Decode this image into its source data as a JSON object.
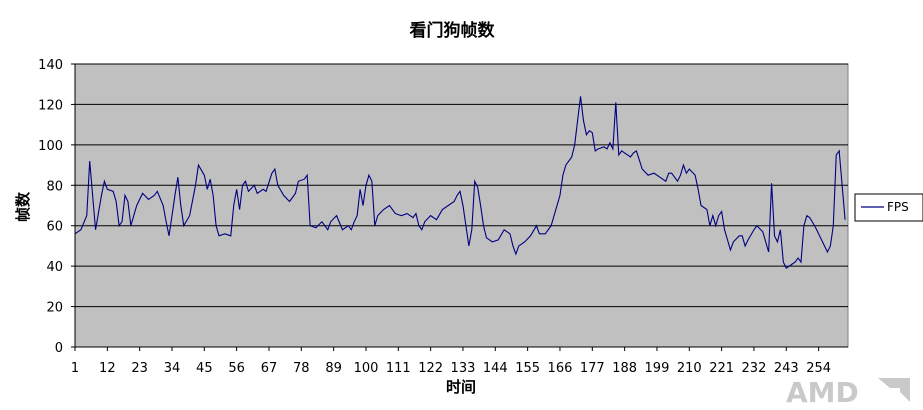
{
  "chart_data": {
    "type": "line",
    "title": "看门狗帧数",
    "xlabel": "时间",
    "ylabel": "帧数",
    "ylim": [
      0,
      140
    ],
    "yticks": [
      0,
      20,
      40,
      60,
      80,
      100,
      120,
      140
    ],
    "xticks": [
      1,
      12,
      23,
      34,
      45,
      56,
      67,
      78,
      89,
      100,
      111,
      122,
      133,
      144,
      155,
      166,
      177,
      188,
      199,
      210,
      221,
      232,
      243,
      254
    ],
    "xlim": [
      1,
      264
    ],
    "grid": "horizontal",
    "legend": "right",
    "background_color": "#c0c0c0",
    "line_color": "#000080",
    "series": [
      {
        "name": "FPS",
        "keypoints": [
          [
            1,
            56
          ],
          [
            3,
            58
          ],
          [
            5,
            65
          ],
          [
            6,
            92
          ],
          [
            8,
            58
          ],
          [
            10,
            75
          ],
          [
            11,
            82
          ],
          [
            12,
            78
          ],
          [
            14,
            77
          ],
          [
            15,
            72
          ],
          [
            16,
            60
          ],
          [
            17,
            62
          ],
          [
            18,
            75
          ],
          [
            19,
            72
          ],
          [
            20,
            60
          ],
          [
            22,
            70
          ],
          [
            24,
            76
          ],
          [
            26,
            73
          ],
          [
            28,
            75
          ],
          [
            29,
            77
          ],
          [
            31,
            70
          ],
          [
            32,
            62
          ],
          [
            33,
            55
          ],
          [
            35,
            75
          ],
          [
            36,
            84
          ],
          [
            37,
            70
          ],
          [
            38,
            60
          ],
          [
            40,
            65
          ],
          [
            42,
            80
          ],
          [
            43,
            90
          ],
          [
            45,
            85
          ],
          [
            46,
            78
          ],
          [
            47,
            83
          ],
          [
            48,
            75
          ],
          [
            49,
            60
          ],
          [
            50,
            55
          ],
          [
            52,
            56
          ],
          [
            54,
            55
          ],
          [
            55,
            70
          ],
          [
            56,
            78
          ],
          [
            57,
            68
          ],
          [
            58,
            80
          ],
          [
            59,
            82
          ],
          [
            60,
            77
          ],
          [
            62,
            80
          ],
          [
            63,
            76
          ],
          [
            65,
            78
          ],
          [
            66,
            77
          ],
          [
            68,
            86
          ],
          [
            69,
            88
          ],
          [
            70,
            80
          ],
          [
            72,
            75
          ],
          [
            74,
            72
          ],
          [
            76,
            76
          ],
          [
            77,
            82
          ],
          [
            79,
            83
          ],
          [
            80,
            85
          ],
          [
            81,
            60
          ],
          [
            83,
            59
          ],
          [
            85,
            62
          ],
          [
            87,
            58
          ],
          [
            88,
            62
          ],
          [
            90,
            65
          ],
          [
            92,
            58
          ],
          [
            94,
            60
          ],
          [
            95,
            58
          ],
          [
            96,
            62
          ],
          [
            97,
            65
          ],
          [
            98,
            78
          ],
          [
            99,
            70
          ],
          [
            100,
            80
          ],
          [
            101,
            85
          ],
          [
            102,
            82
          ],
          [
            103,
            60
          ],
          [
            104,
            65
          ],
          [
            106,
            68
          ],
          [
            108,
            70
          ],
          [
            110,
            66
          ],
          [
            112,
            65
          ],
          [
            114,
            66
          ],
          [
            116,
            64
          ],
          [
            117,
            66
          ],
          [
            118,
            60
          ],
          [
            119,
            58
          ],
          [
            120,
            62
          ],
          [
            122,
            65
          ],
          [
            124,
            63
          ],
          [
            126,
            68
          ],
          [
            128,
            70
          ],
          [
            130,
            72
          ],
          [
            131,
            75
          ],
          [
            132,
            77
          ],
          [
            133,
            70
          ],
          [
            134,
            60
          ],
          [
            135,
            50
          ],
          [
            136,
            58
          ],
          [
            137,
            82
          ],
          [
            138,
            79
          ],
          [
            139,
            70
          ],
          [
            140,
            60
          ],
          [
            141,
            54
          ],
          [
            143,
            52
          ],
          [
            145,
            53
          ],
          [
            147,
            58
          ],
          [
            149,
            56
          ],
          [
            150,
            50
          ],
          [
            151,
            46
          ],
          [
            152,
            50
          ],
          [
            154,
            52
          ],
          [
            156,
            55
          ],
          [
            158,
            60
          ],
          [
            159,
            56
          ],
          [
            161,
            56
          ],
          [
            163,
            60
          ],
          [
            165,
            70
          ],
          [
            166,
            75
          ],
          [
            167,
            85
          ],
          [
            168,
            90
          ],
          [
            170,
            94
          ],
          [
            171,
            100
          ],
          [
            172,
            112
          ],
          [
            173,
            124
          ],
          [
            174,
            112
          ],
          [
            175,
            105
          ],
          [
            176,
            107
          ],
          [
            177,
            106
          ],
          [
            178,
            97
          ],
          [
            179,
            98
          ],
          [
            181,
            99
          ],
          [
            182,
            98
          ],
          [
            183,
            101
          ],
          [
            184,
            98
          ],
          [
            185,
            121
          ],
          [
            186,
            95
          ],
          [
            187,
            97
          ],
          [
            188,
            96
          ],
          [
            190,
            94
          ],
          [
            191,
            96
          ],
          [
            192,
            97
          ],
          [
            194,
            88
          ],
          [
            196,
            85
          ],
          [
            198,
            86
          ],
          [
            200,
            84
          ],
          [
            202,
            82
          ],
          [
            203,
            86
          ],
          [
            204,
            86
          ],
          [
            205,
            84
          ],
          [
            206,
            82
          ],
          [
            207,
            85
          ],
          [
            208,
            90
          ],
          [
            209,
            86
          ],
          [
            210,
            88
          ],
          [
            212,
            85
          ],
          [
            213,
            78
          ],
          [
            214,
            70
          ],
          [
            216,
            68
          ],
          [
            217,
            60
          ],
          [
            218,
            65
          ],
          [
            219,
            60
          ],
          [
            220,
            65
          ],
          [
            221,
            67
          ],
          [
            222,
            58
          ],
          [
            223,
            53
          ],
          [
            224,
            48
          ],
          [
            225,
            52
          ],
          [
            227,
            55
          ],
          [
            228,
            55
          ],
          [
            229,
            50
          ],
          [
            230,
            53
          ],
          [
            232,
            58
          ],
          [
            233,
            60
          ],
          [
            235,
            57
          ],
          [
            236,
            52
          ],
          [
            237,
            47
          ],
          [
            238,
            81
          ],
          [
            239,
            55
          ],
          [
            240,
            52
          ],
          [
            241,
            58
          ],
          [
            242,
            42
          ],
          [
            243,
            39
          ],
          [
            245,
            41
          ],
          [
            246,
            42
          ],
          [
            247,
            44
          ],
          [
            248,
            42
          ],
          [
            249,
            60
          ],
          [
            250,
            65
          ],
          [
            251,
            64
          ],
          [
            253,
            59
          ],
          [
            255,
            53
          ],
          [
            257,
            47
          ],
          [
            258,
            50
          ],
          [
            259,
            60
          ],
          [
            260,
            95
          ],
          [
            261,
            97
          ],
          [
            262,
            80
          ],
          [
            263,
            63
          ]
        ]
      }
    ]
  },
  "logo_text": "AMD"
}
